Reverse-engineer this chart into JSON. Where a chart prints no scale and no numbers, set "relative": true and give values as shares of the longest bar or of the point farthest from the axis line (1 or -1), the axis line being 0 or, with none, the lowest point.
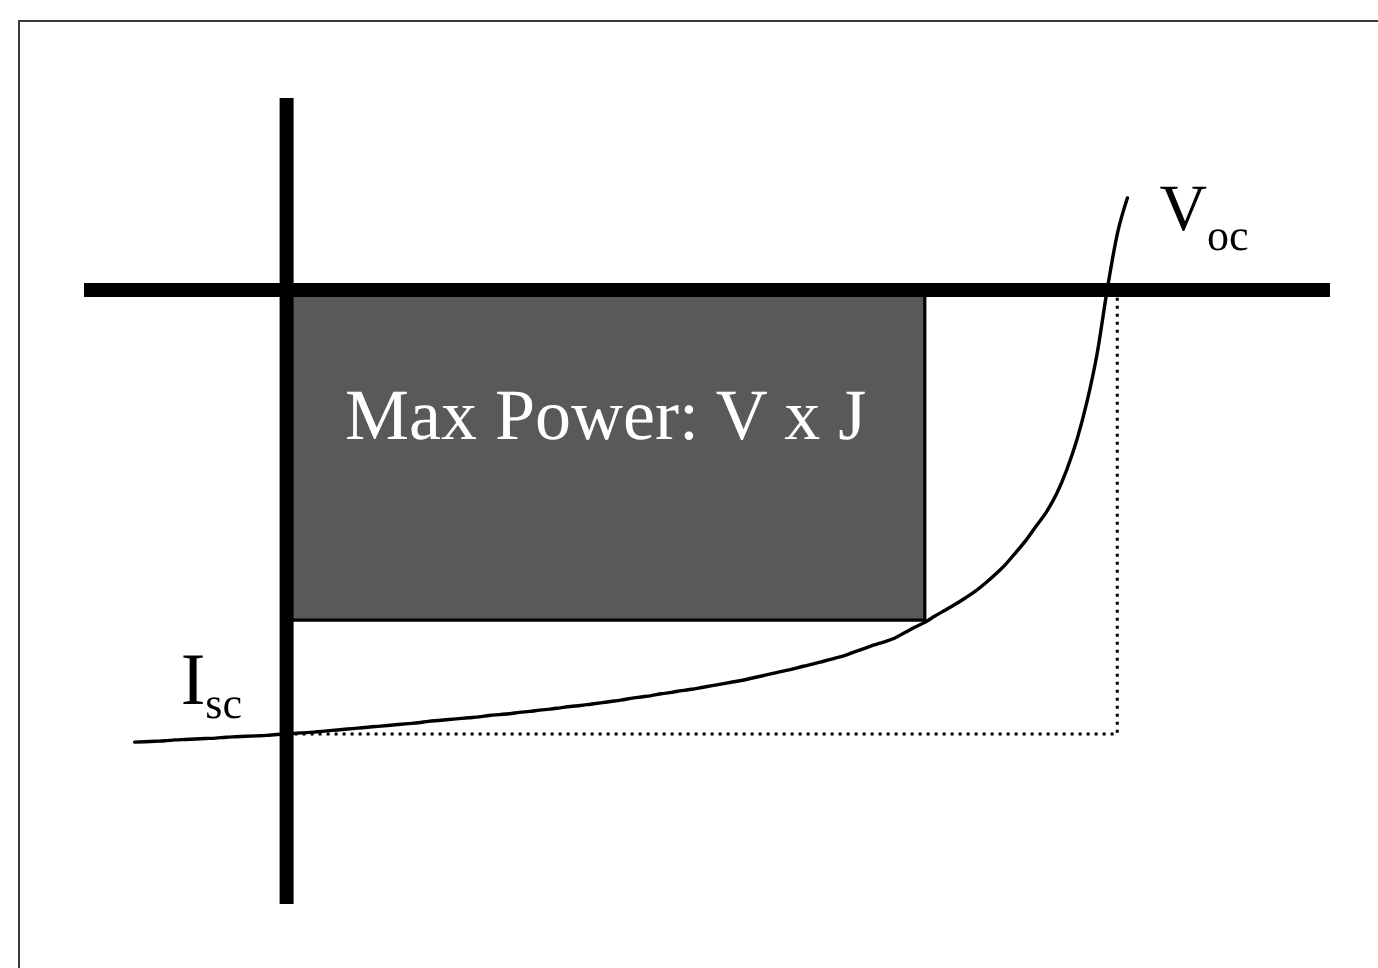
{
  "chart_data": {
    "type": "line",
    "relative": true,
    "categories": [
      null,
      null,
      null,
      null,
      null,
      null,
      null,
      null,
      null,
      null,
      null,
      null,
      null,
      null,
      null,
      null,
      null,
      null,
      null,
      null,
      null,
      null,
      null,
      null,
      null,
      null,
      null,
      null,
      null,
      null,
      null,
      null,
      null,
      null,
      null,
      null,
      null,
      null,
      null,
      null,
      null,
      null,
      null,
      null,
      null,
      null,
      null,
      null,
      null,
      null,
      null,
      null,
      null,
      null,
      null,
      null,
      null,
      null,
      null,
      null,
      null,
      null,
      null,
      null,
      null,
      null,
      null,
      null,
      null,
      null,
      null,
      null,
      null,
      null,
      null,
      null,
      null,
      null,
      null,
      null,
      null,
      null,
      null,
      null,
      null,
      null,
      null,
      null,
      null,
      null,
      null,
      null,
      null,
      null,
      null,
      null,
      null,
      null,
      null,
      null,
      null,
      null,
      null,
      null,
      null,
      null,
      null,
      null,
      null,
      null,
      null,
      null,
      null,
      null,
      null,
      null,
      null,
      null,
      null,
      null,
      null,
      null,
      null,
      null
    ],
    "series": [
      {
        "type": "area",
        "color": "#595959",
        "values": [
          null,
          null,
          null,
          null,
          null,
          null,
          null,
          null,
          null,
          null,
          null,
          null,
          null,
          null,
          null,
          null,
          null,
          null,
          null,
          null,
          -0.73,
          -0.73,
          -0.73,
          -0.73,
          -0.73,
          -0.73,
          -0.73,
          -0.73,
          -0.73,
          -0.73,
          -0.73,
          -0.73,
          -0.73,
          -0.73,
          -0.73,
          -0.73,
          -0.73,
          -0.73,
          -0.73,
          -0.73,
          -0.73,
          -0.73,
          -0.73,
          -0.73,
          -0.73,
          -0.73,
          -0.73,
          -0.73,
          -0.73,
          -0.73,
          -0.73,
          -0.73,
          -0.73,
          -0.73,
          -0.73,
          -0.73,
          -0.73,
          -0.73,
          -0.73,
          -0.73,
          -0.73,
          -0.73,
          -0.73,
          -0.73,
          -0.73,
          -0.73,
          -0.73,
          -0.73,
          -0.73,
          -0.73,
          -0.73,
          -0.73,
          -0.73,
          -0.73,
          -0.73,
          -0.73,
          -0.73,
          -0.73,
          -0.73,
          -0.73,
          -0.73,
          -0.73,
          -0.73,
          0,
          null,
          null,
          null,
          null,
          null,
          null,
          null,
          null,
          null,
          null,
          null,
          null,
          null,
          null,
          null,
          null,
          null,
          null,
          null,
          null,
          null,
          null,
          null,
          null,
          null,
          null,
          null,
          null,
          null,
          null,
          null,
          null,
          null,
          null,
          null,
          null,
          null,
          null,
          null,
          null
        ]
      },
      {
        "type": "step",
        "color": "#000000",
        "line_style": "dotted",
        "values": [
          null,
          null,
          null,
          null,
          null,
          null,
          null,
          null,
          null,
          null,
          null,
          null,
          null,
          null,
          null,
          null,
          null,
          null,
          null,
          null,
          -0.982,
          -0.982,
          -0.982,
          -0.982,
          -0.982,
          -0.982,
          -0.982,
          -0.982,
          -0.982,
          -0.982,
          -0.982,
          -0.982,
          -0.982,
          -0.982,
          -0.982,
          -0.982,
          -0.982,
          -0.982,
          -0.982,
          -0.982,
          -0.982,
          -0.982,
          -0.982,
          -0.982,
          -0.982,
          -0.982,
          -0.982,
          -0.982,
          -0.982,
          -0.982,
          -0.982,
          -0.982,
          -0.982,
          -0.982,
          -0.982,
          -0.982,
          -0.982,
          -0.982,
          -0.982,
          -0.982,
          -0.982,
          -0.982,
          -0.982,
          -0.982,
          -0.982,
          -0.982,
          -0.982,
          -0.982,
          -0.982,
          -0.982,
          -0.982,
          -0.982,
          -0.982,
          -0.982,
          -0.982,
          -0.982,
          -0.982,
          -0.982,
          -0.982,
          -0.982,
          -0.982,
          -0.982,
          -0.982,
          -0.982,
          -0.982,
          -0.982,
          -0.982,
          -0.982,
          -0.982,
          -0.982,
          -0.982,
          -0.982,
          -0.982,
          -0.982,
          -0.982,
          -0.982,
          -0.982,
          -0.982,
          -0.982,
          -0.982,
          -0.982,
          -0.982,
          0,
          null,
          null,
          null,
          null,
          null,
          null,
          null,
          null,
          null,
          null,
          null,
          null,
          null,
          null,
          null,
          null,
          null,
          null,
          null,
          null,
          null
        ]
      },
      {
        "color": "#000000",
        "values": [
          null,
          null,
          null,
          null,
          null,
          -1,
          -0.999,
          -0.998,
          -0.997,
          -0.995,
          -0.994,
          -0.993,
          -0.992,
          -0.991,
          -0.989,
          -0.988,
          -0.987,
          -0.986,
          -0.985,
          -0.983,
          -0.982,
          -0.98,
          -0.979,
          -0.977,
          -0.975,
          -0.973,
          -0.971,
          -0.969,
          -0.967,
          -0.965,
          -0.963,
          -0.961,
          -0.959,
          -0.957,
          -0.954,
          -0.952,
          -0.95,
          -0.948,
          -0.946,
          -0.944,
          -0.941,
          -0.939,
          -0.937,
          -0.934,
          -0.932,
          -0.929,
          -0.927,
          -0.924,
          -0.921,
          -0.919,
          -0.916,
          -0.913,
          -0.91,
          -0.907,
          -0.903,
          -0.9,
          -0.897,
          -0.893,
          -0.89,
          -0.886,
          -0.883,
          -0.879,
          -0.875,
          -0.871,
          -0.867,
          -0.863,
          -0.858,
          -0.853,
          -0.848,
          -0.843,
          -0.838,
          -0.832,
          -0.827,
          -0.821,
          -0.815,
          -0.809,
          -0.801,
          -0.793,
          -0.785,
          -0.778,
          -0.77,
          -0.758,
          -0.746,
          -0.735,
          -0.721,
          -0.708,
          -0.695,
          -0.681,
          -0.666,
          -0.648,
          -0.628,
          -0.606,
          -0.58,
          -0.553,
          -0.522,
          -0.491,
          -0.451,
          -0.398,
          -0.332,
          -0.248,
          -0.142,
          0,
          0.124,
          0.204,
          null,
          null,
          null,
          null,
          null,
          null,
          null,
          null,
          null,
          null,
          null,
          null,
          null,
          null,
          null,
          null,
          null,
          null,
          null,
          null
        ]
      }
    ],
    "annotations": [
      "Max Power: V x J",
      "V$_{oc}$",
      "I$_{sc}$"
    ]
  }
}
